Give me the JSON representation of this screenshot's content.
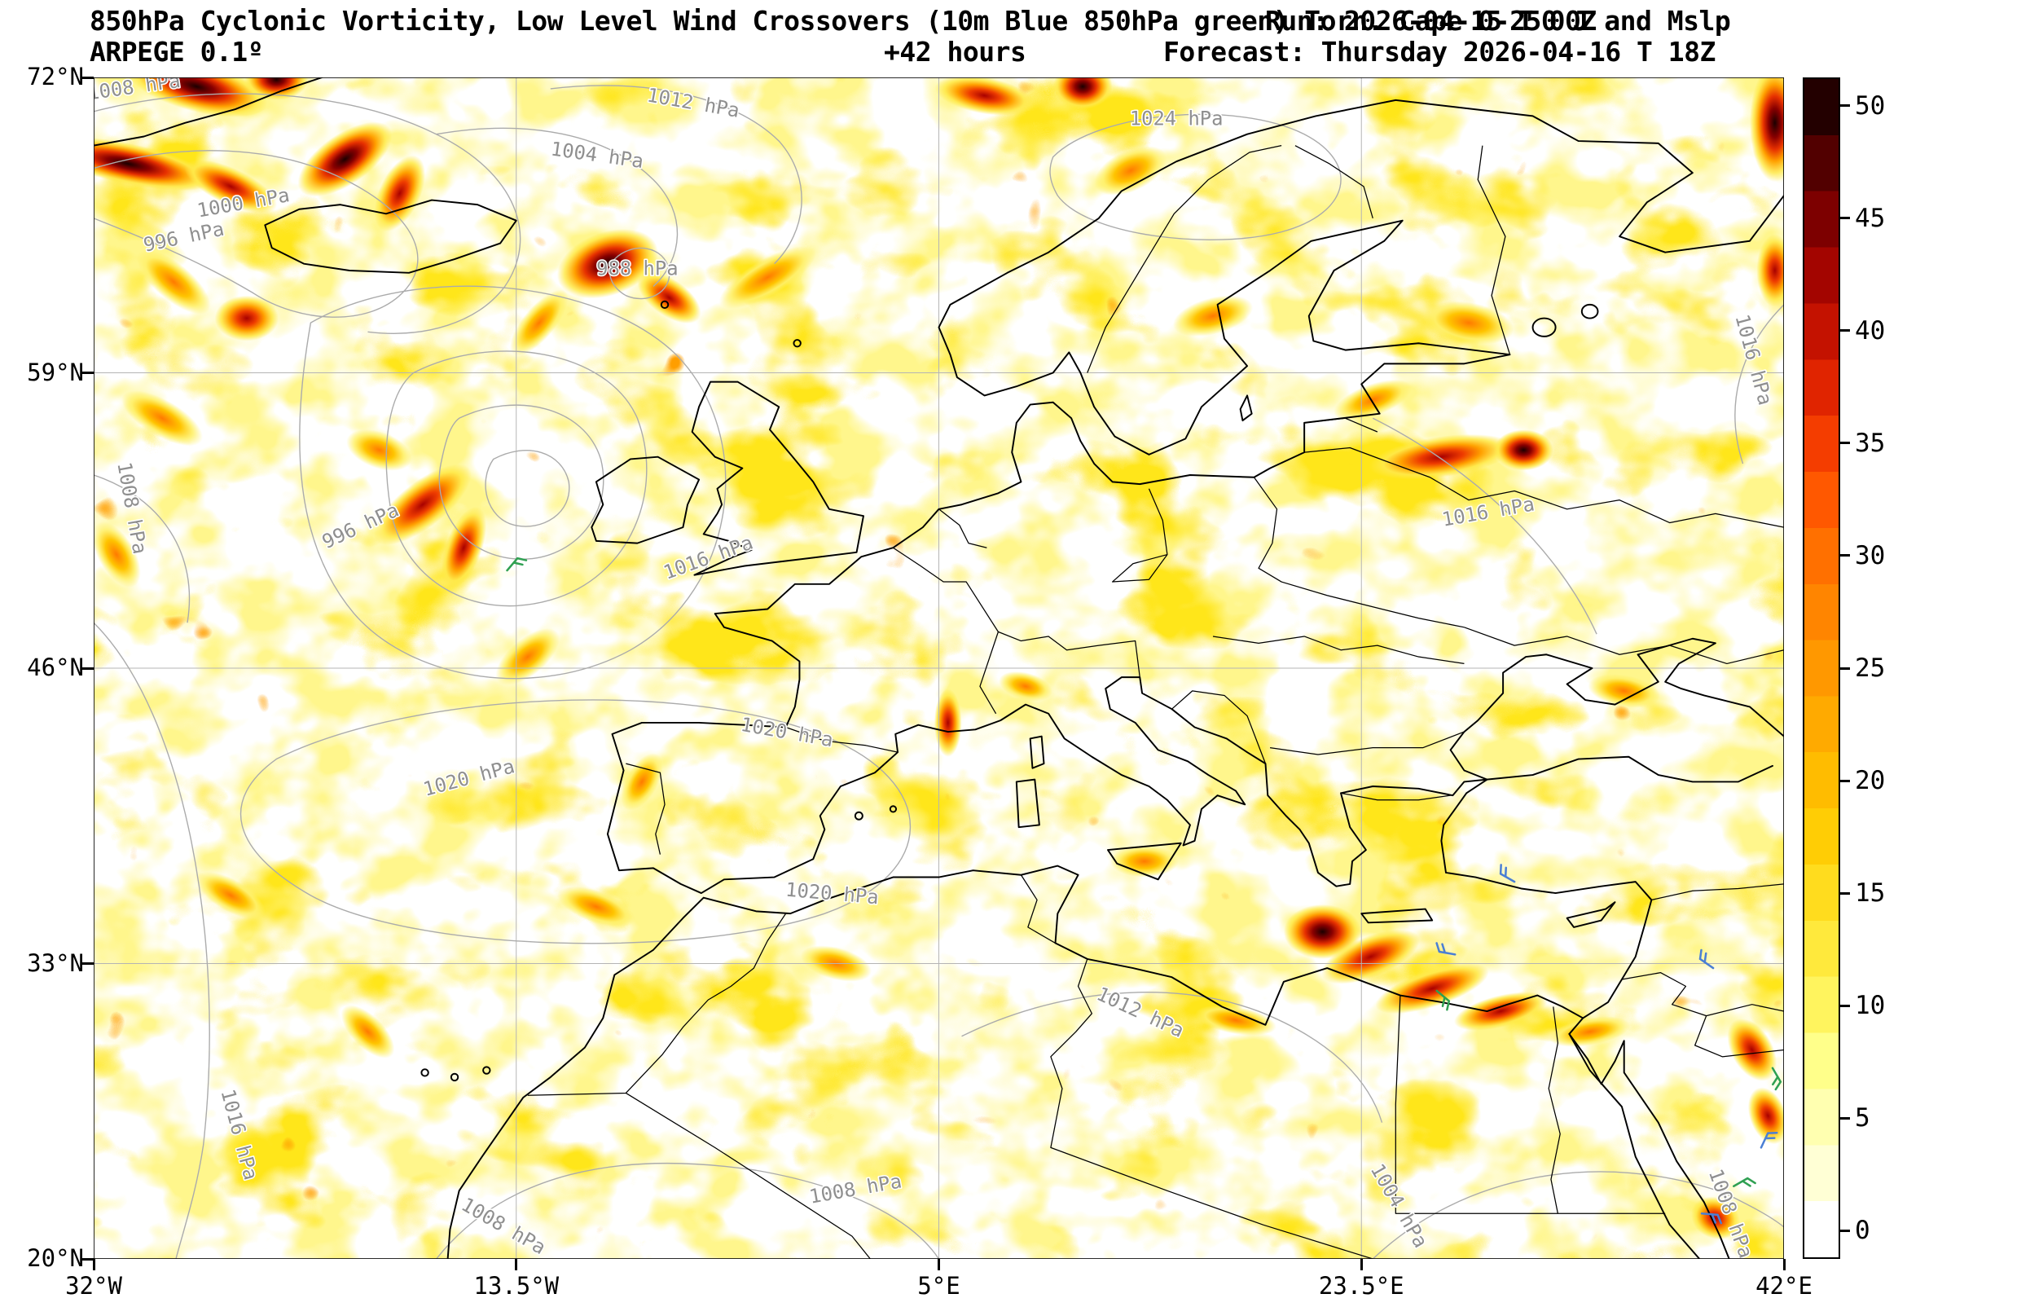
{
  "header": {
    "title": "850hPa Cyclonic Vorticity, Low Level Wind Crossovers (10m Blue 850hPa green) Torn. Cape 0-250 J and Mslp",
    "run": "Run: 2026-04-15 T 00Z",
    "model": "ARPEGE 0.1º",
    "lead": "+42 hours",
    "forecast": "Forecast: Thursday 2026-04-16 T 18Z"
  },
  "axes": {
    "lat_ticks": [
      {
        "label": "72°N",
        "value": 72
      },
      {
        "label": "59°N",
        "value": 59
      },
      {
        "label": "46°N",
        "value": 46
      },
      {
        "label": "33°N",
        "value": 33
      },
      {
        "label": "20°N",
        "value": 20
      }
    ],
    "lon_ticks": [
      {
        "label": "32°W",
        "value": -32
      },
      {
        "label": "13.5°W",
        "value": -13.5
      },
      {
        "label": "5°E",
        "value": 5
      },
      {
        "label": "23.5°E",
        "value": 23.5
      },
      {
        "label": "42°E",
        "value": 42
      }
    ]
  },
  "map": {
    "extent": {
      "lon_min": -32,
      "lon_max": 42,
      "lat_min": 20,
      "lat_max": 72
    }
  },
  "colorbar": {
    "range": [
      -1.25,
      51.25
    ],
    "ticks": [
      0,
      5,
      10,
      15,
      20,
      25,
      30,
      35,
      40,
      45,
      50
    ],
    "segment_colors": [
      "#ffffff",
      "#ffffd5",
      "#ffffb0",
      "#ffff8a",
      "#fff45e",
      "#ffe93c",
      "#ffdc1e",
      "#ffcd05",
      "#ffbc00",
      "#ffaa00",
      "#ff9800",
      "#ff8500",
      "#ff7000",
      "#ff5800",
      "#f43d00",
      "#e02400",
      "#c41200",
      "#a30500",
      "#7d0000",
      "#520000",
      "#230000"
    ]
  },
  "chart_data": {
    "type": "heatmap",
    "title": "850hPa Cyclonic Vorticity, Low Level Wind Crossovers (10m Blue 850hPa green) Torn. Cape 0-250 J and Mslp",
    "variable": "850hPa cyclonic vorticity",
    "overlays": [
      "MSLP isobars (hPa)",
      "10m wind crossover barbs (blue)",
      "850hPa wind crossover barbs (green)",
      "Cape 0-250 J"
    ],
    "extent": {
      "lon_min": -32,
      "lon_max": 42,
      "lat_min": 20,
      "lat_max": 72
    },
    "colorbar_range": [
      0,
      50
    ],
    "vorticity_maxima": [
      {
        "lon": -27.5,
        "lat": 71.6,
        "intensity": 50,
        "rx": 3.2,
        "ry": 1.1,
        "rot": 15
      },
      {
        "lon": -24.0,
        "lat": 71.9,
        "intensity": 48,
        "rx": 1.4,
        "ry": 0.9,
        "rot": 0
      },
      {
        "lon": -30.5,
        "lat": 68.2,
        "intensity": 46,
        "rx": 3.8,
        "ry": 0.9,
        "rot": 12
      },
      {
        "lon": -26.0,
        "lat": 67.2,
        "intensity": 40,
        "rx": 2.2,
        "ry": 0.8,
        "rot": 25
      },
      {
        "lon": -25.3,
        "lat": 61.4,
        "intensity": 43,
        "rx": 1.4,
        "ry": 1.0,
        "rot": 0
      },
      {
        "lon": -28.5,
        "lat": 63.0,
        "intensity": 34,
        "rx": 2.0,
        "ry": 0.8,
        "rot": 40
      },
      {
        "lon": -21.0,
        "lat": 68.4,
        "intensity": 47,
        "rx": 2.4,
        "ry": 1.1,
        "rot": -35
      },
      {
        "lon": -18.6,
        "lat": 66.9,
        "intensity": 38,
        "rx": 1.8,
        "ry": 0.9,
        "rot": -65
      },
      {
        "lon": -9.5,
        "lat": 63.8,
        "intensity": 47,
        "rx": 2.3,
        "ry": 1.4,
        "rot": -20
      },
      {
        "lon": -6.8,
        "lat": 62.3,
        "intensity": 36,
        "rx": 1.6,
        "ry": 0.8,
        "rot": 35
      },
      {
        "lon": -12.5,
        "lat": 61.2,
        "intensity": 33,
        "rx": 1.8,
        "ry": 0.7,
        "rot": -50
      },
      {
        "lon": -17.6,
        "lat": 53.2,
        "intensity": 45,
        "rx": 2.6,
        "ry": 1.0,
        "rot": -38
      },
      {
        "lon": -15.8,
        "lat": 51.3,
        "intensity": 39,
        "rx": 1.9,
        "ry": 0.8,
        "rot": -70
      },
      {
        "lon": -19.5,
        "lat": 55.6,
        "intensity": 34,
        "rx": 1.5,
        "ry": 0.8,
        "rot": 20
      },
      {
        "lon": 11.3,
        "lat": 71.6,
        "intensity": 48,
        "rx": 1.3,
        "ry": 1.0,
        "rot": 0
      },
      {
        "lon": 7.0,
        "lat": 71.2,
        "intensity": 36,
        "rx": 2.2,
        "ry": 0.8,
        "rot": 10
      },
      {
        "lon": 41.6,
        "lat": 70.0,
        "intensity": 50,
        "rx": 1.1,
        "ry": 2.6,
        "rot": 0
      },
      {
        "lon": 41.6,
        "lat": 63.5,
        "intensity": 42,
        "rx": 0.8,
        "ry": 1.6,
        "rot": 0
      },
      {
        "lon": 13.4,
        "lat": 67.9,
        "intensity": 32,
        "rx": 1.7,
        "ry": 0.9,
        "rot": -25
      },
      {
        "lon": -2.5,
        "lat": 63.2,
        "intensity": 29,
        "rx": 2.4,
        "ry": 0.8,
        "rot": -30
      },
      {
        "lon": 27.0,
        "lat": 55.3,
        "intensity": 45,
        "rx": 3.2,
        "ry": 0.9,
        "rot": -8
      },
      {
        "lon": 30.6,
        "lat": 55.6,
        "intensity": 47,
        "rx": 1.3,
        "ry": 0.9,
        "rot": 0
      },
      {
        "lon": 24.0,
        "lat": 57.8,
        "intensity": 31,
        "rx": 1.8,
        "ry": 0.7,
        "rot": -20
      },
      {
        "lon": 28.2,
        "lat": 61.2,
        "intensity": 30,
        "rx": 2.0,
        "ry": 0.9,
        "rot": 10
      },
      {
        "lon": 5.4,
        "lat": 43.6,
        "intensity": 40,
        "rx": 0.6,
        "ry": 1.5,
        "rot": 0
      },
      {
        "lon": 8.8,
        "lat": 45.2,
        "intensity": 30,
        "rx": 1.2,
        "ry": 0.6,
        "rot": 15
      },
      {
        "lon": 21.8,
        "lat": 34.4,
        "intensity": 47,
        "rx": 1.7,
        "ry": 1.2,
        "rot": 0
      },
      {
        "lon": 23.9,
        "lat": 33.3,
        "intensity": 45,
        "rx": 2.3,
        "ry": 0.9,
        "rot": -22
      },
      {
        "lon": 26.6,
        "lat": 31.9,
        "intensity": 43,
        "rx": 2.6,
        "ry": 0.8,
        "rot": -18
      },
      {
        "lon": 29.6,
        "lat": 30.9,
        "intensity": 39,
        "rx": 2.1,
        "ry": 0.7,
        "rot": -14
      },
      {
        "lon": 33.5,
        "lat": 30.0,
        "intensity": 33,
        "rx": 1.8,
        "ry": 0.6,
        "rot": -10
      },
      {
        "lon": 40.6,
        "lat": 29.2,
        "intensity": 43,
        "rx": 0.9,
        "ry": 1.5,
        "rot": -30
      },
      {
        "lon": 41.3,
        "lat": 26.3,
        "intensity": 41,
        "rx": 0.8,
        "ry": 1.3,
        "rot": -20
      },
      {
        "lon": 39.0,
        "lat": 21.8,
        "intensity": 36,
        "rx": 1.1,
        "ry": 0.9,
        "rot": 25
      },
      {
        "lon": 35.0,
        "lat": 45.0,
        "intensity": 29,
        "rx": 1.6,
        "ry": 0.7,
        "rot": 10
      },
      {
        "lon": 17.0,
        "lat": 61.5,
        "intensity": 28,
        "rx": 1.8,
        "ry": 0.8,
        "rot": -15
      },
      {
        "lon": -13.0,
        "lat": 46.5,
        "intensity": 30,
        "rx": 1.7,
        "ry": 0.8,
        "rot": -40
      },
      {
        "lon": -8.0,
        "lat": 41.0,
        "intensity": 28,
        "rx": 1.4,
        "ry": 0.7,
        "rot": -60
      },
      {
        "lon": -29.0,
        "lat": 57.0,
        "intensity": 32,
        "rx": 2.0,
        "ry": 0.8,
        "rot": 30
      },
      {
        "lon": -31.0,
        "lat": 51.0,
        "intensity": 30,
        "rx": 1.6,
        "ry": 0.8,
        "rot": 60
      },
      {
        "lon": -10.0,
        "lat": 35.5,
        "intensity": 27,
        "rx": 1.8,
        "ry": 0.7,
        "rot": 20
      },
      {
        "lon": 0.5,
        "lat": 33.0,
        "intensity": 27,
        "rx": 1.6,
        "ry": 0.7,
        "rot": 15
      },
      {
        "lon": 14.0,
        "lat": 37.5,
        "intensity": 28,
        "rx": 1.5,
        "ry": 0.7,
        "rot": 0
      },
      {
        "lon": 18.0,
        "lat": 30.5,
        "intensity": 27,
        "rx": 1.8,
        "ry": 0.6,
        "rot": 10
      },
      {
        "lon": -20.0,
        "lat": 30.0,
        "intensity": 28,
        "rx": 1.5,
        "ry": 0.7,
        "rot": 45
      },
      {
        "lon": -26.0,
        "lat": 36.0,
        "intensity": 27,
        "rx": 1.7,
        "ry": 0.7,
        "rot": 30
      }
    ],
    "isobar_labels": [
      {
        "text": "1008 hPa",
        "lon": -30.2,
        "lat": 71.3,
        "rot": -8
      },
      {
        "text": "1000 hPa",
        "lon": -25.4,
        "lat": 66.2,
        "rot": -10
      },
      {
        "text": "996 hPa",
        "lon": -28.0,
        "lat": 64.7,
        "rot": -12
      },
      {
        "text": "1004 hPa",
        "lon": -10.0,
        "lat": 68.3,
        "rot": 8
      },
      {
        "text": "1012 hPa",
        "lon": -5.8,
        "lat": 70.6,
        "rot": 10
      },
      {
        "text": "1024 hPa",
        "lon": 15.4,
        "lat": 69.9,
        "rot": 0
      },
      {
        "text": "988 hPa",
        "lon": -8.2,
        "lat": 63.3,
        "rot": 0
      },
      {
        "text": "1008 hPa",
        "lon": -30.6,
        "lat": 53.0,
        "rot": 80
      },
      {
        "text": "996 hPa",
        "lon": -20.2,
        "lat": 52.0,
        "rot": -25
      },
      {
        "text": "1016 hPa",
        "lon": -5.0,
        "lat": 50.6,
        "rot": -20
      },
      {
        "text": "1020 hPa",
        "lon": -15.5,
        "lat": 40.9,
        "rot": -15
      },
      {
        "text": "1020 hPa",
        "lon": -1.7,
        "lat": 42.9,
        "rot": 10
      },
      {
        "text": "1020 hPa",
        "lon": 0.3,
        "lat": 35.8,
        "rot": 5
      },
      {
        "text": "1016 hPa",
        "lon": -25.9,
        "lat": 25.4,
        "rot": 75
      },
      {
        "text": "1008 hPa",
        "lon": -14.2,
        "lat": 21.2,
        "rot": 30
      },
      {
        "text": "1008 hPa",
        "lon": 1.4,
        "lat": 22.8,
        "rot": -10
      },
      {
        "text": "1012 hPa",
        "lon": 13.7,
        "lat": 30.6,
        "rot": 25
      },
      {
        "text": "1016 hPa",
        "lon": 29.1,
        "lat": 52.6,
        "rot": -10
      },
      {
        "text": "1016 hPa",
        "lon": 40.4,
        "lat": 59.5,
        "rot": 75
      },
      {
        "text": "1004 hPa",
        "lon": 24.9,
        "lat": 22.2,
        "rot": 60
      },
      {
        "text": "1008 hPa",
        "lon": 39.4,
        "lat": 21.9,
        "rot": 70
      }
    ],
    "wind_barbs": [
      {
        "lon": -13.9,
        "lat": 50.3,
        "color": "#2fa052",
        "rot": 40
      },
      {
        "lon": 27.6,
        "lat": 33.4,
        "color": "#4a7fd4",
        "rot": -80
      },
      {
        "lon": 26.8,
        "lat": 31.8,
        "color": "#2fa052",
        "rot": 130
      },
      {
        "lon": 30.2,
        "lat": 36.6,
        "color": "#4a7fd4",
        "rot": -60
      },
      {
        "lon": 38.9,
        "lat": 32.8,
        "color": "#4a7fd4",
        "rot": -55
      },
      {
        "lon": 41.5,
        "lat": 28.4,
        "color": "#2fa052",
        "rot": 150
      },
      {
        "lon": 41.0,
        "lat": 24.9,
        "color": "#4a7fd4",
        "rot": 25
      },
      {
        "lon": 39.8,
        "lat": 23.2,
        "color": "#2fa052",
        "rot": 60
      },
      {
        "lon": 38.4,
        "lat": 22.0,
        "color": "#4a7fd4",
        "rot": 95
      }
    ],
    "colors": {
      "vorticity_low": "#fff68c",
      "vorticity_mid": "#ffe61a",
      "vorticity_high": "#ee3c00",
      "vorticity_extreme": "#1c0000",
      "isobar": "#ababab",
      "coastline": "#000000",
      "barb_10m": "#4a7fd4",
      "barb_850hPa": "#2fa052"
    }
  }
}
